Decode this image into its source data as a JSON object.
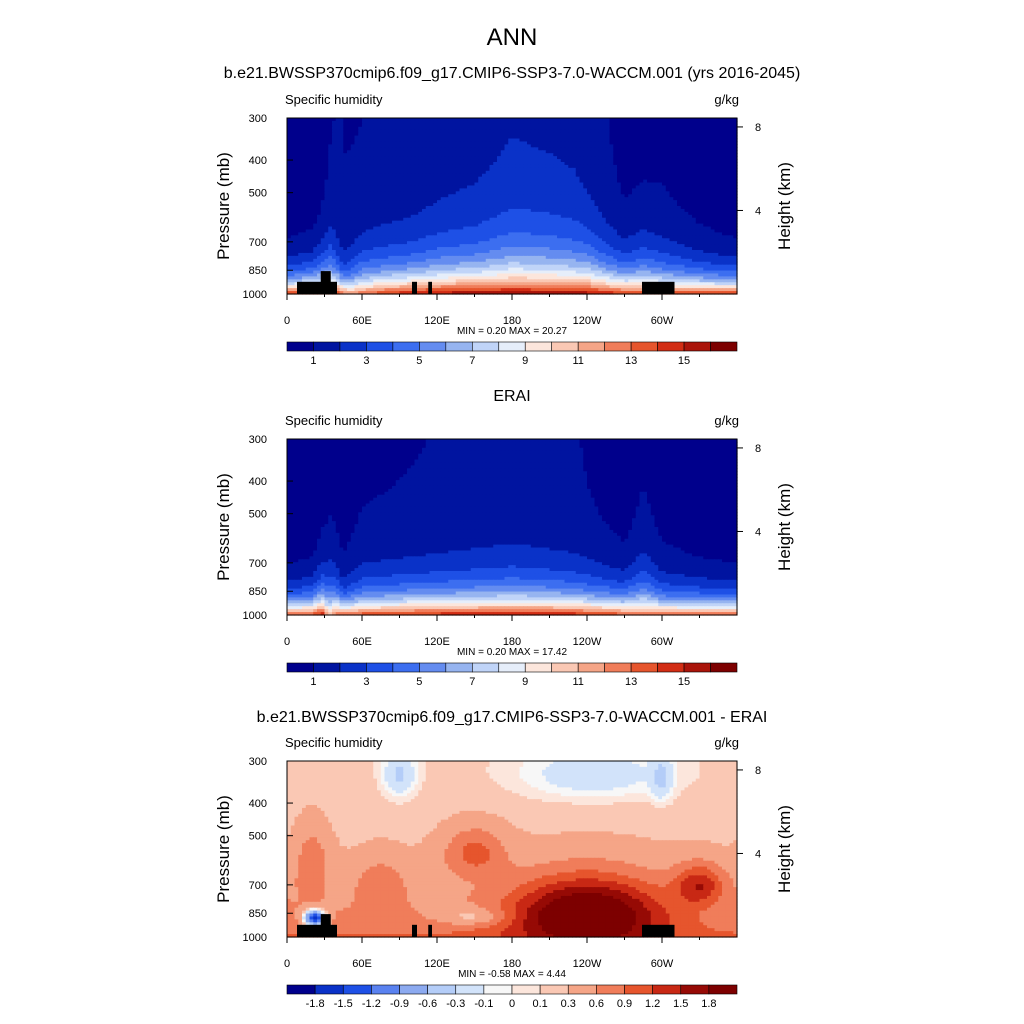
{
  "figure": {
    "main_title": "ANN",
    "colors": {
      "full_palette": [
        "#00008c",
        "#0014a0",
        "#0a32c8",
        "#1e50e6",
        "#3c6ef0",
        "#648cf0",
        "#96b4f0",
        "#c0d4f8",
        "#e6eefa",
        "#fce6dc",
        "#fac8b4",
        "#f5a587",
        "#f07d5a",
        "#e6552d",
        "#d22d14",
        "#aa140a",
        "#7d0000"
      ],
      "diff_palette": [
        "#00008c",
        "#0a32c8",
        "#1e50e6",
        "#5a82f0",
        "#8caaf0",
        "#b4cdf8",
        "#d2e3fa",
        "#f7f7f7",
        "#fce6dc",
        "#fac8b4",
        "#f5a587",
        "#f07d5a",
        "#e6552d",
        "#c82814",
        "#960a05",
        "#7d0000"
      ],
      "land_mask": "#000000"
    }
  },
  "chart_data": [
    {
      "type": "contour",
      "title": "b.e21.BWSSP370cmip6.f09_g17.CMIP6-SSP3-7.0-WACCM.001 (yrs 2016-2045)",
      "variable": "Specific humidity",
      "units": "g/kg",
      "ylabel": "Pressure (mb)",
      "y2label": "Height (km)",
      "xlabel": "",
      "x_ticks": [
        "0",
        "60E",
        "120E",
        "180",
        "120W",
        "60W"
      ],
      "x_tick_lon": [
        0,
        60,
        120,
        180,
        240,
        300
      ],
      "xlim": [
        0,
        360
      ],
      "y_ticks": [
        "300",
        "400",
        "500",
        "700",
        "850",
        "1000"
      ],
      "y_tick_p": [
        300,
        400,
        500,
        700,
        850,
        1000
      ],
      "ylim": [
        1000,
        300
      ],
      "y2_ticks": [
        "8",
        "4"
      ],
      "y2_tick_km": [
        8,
        4
      ],
      "stats": "MIN =   0.20  MAX =  20.27",
      "colorbar_labels": [
        "1",
        "3",
        "5",
        "7",
        "9",
        "11",
        "13",
        "15"
      ],
      "colorbar_levels": [
        0,
        1,
        2,
        3,
        4,
        5,
        6,
        7,
        8,
        9,
        10,
        11,
        12,
        13,
        14,
        15,
        16
      ],
      "field": "abs",
      "surface_low": [
        [
          0,
          14.5
        ],
        [
          10,
          14.8
        ],
        [
          25,
          15
        ],
        [
          40,
          14.5
        ],
        [
          50,
          12.3
        ],
        [
          60,
          13
        ],
        [
          80,
          14.5
        ],
        [
          100,
          15.2
        ],
        [
          110,
          15.5
        ],
        [
          125,
          15.8
        ],
        [
          150,
          16
        ],
        [
          180,
          16.2
        ],
        [
          210,
          16
        ],
        [
          240,
          15.8
        ],
        [
          270,
          14.5
        ],
        [
          285,
          13.8
        ],
        [
          300,
          14
        ],
        [
          330,
          14.3
        ],
        [
          360,
          14.5
        ]
      ],
      "top_dry": [
        [
          0,
          0.3
        ],
        [
          25,
          0.4
        ],
        [
          40,
          1.0
        ],
        [
          60,
          0.9
        ],
        [
          100,
          1.1
        ],
        [
          140,
          1.3
        ],
        [
          180,
          1.5
        ],
        [
          230,
          1.4
        ],
        [
          270,
          0.6
        ],
        [
          285,
          0.5
        ],
        [
          300,
          0.7
        ],
        [
          330,
          0.5
        ],
        [
          360,
          0.3
        ]
      ],
      "scale_height": [
        [
          0,
          105
        ],
        [
          20,
          115
        ],
        [
          35,
          155
        ],
        [
          45,
          100
        ],
        [
          60,
          145
        ],
        [
          100,
          150
        ],
        [
          125,
          165
        ],
        [
          150,
          170
        ],
        [
          180,
          195
        ],
        [
          210,
          190
        ],
        [
          240,
          175
        ],
        [
          270,
          135
        ],
        [
          285,
          165
        ],
        [
          300,
          140
        ],
        [
          330,
          115
        ],
        [
          360,
          105
        ]
      ],
      "land": [
        {
          "lon": [
            8,
            40
          ],
          "top": 920
        },
        {
          "lon": [
            27,
            35
          ],
          "top": 855
        },
        {
          "lon": [
            100,
            104
          ],
          "top": 920
        },
        {
          "lon": [
            113,
            116
          ],
          "top": 920
        },
        {
          "lon": [
            284,
            310
          ],
          "top": 920
        }
      ]
    },
    {
      "type": "contour",
      "title": "ERAI",
      "variable": "Specific humidity",
      "units": "g/kg",
      "ylabel": "Pressure (mb)",
      "y2label": "Height (km)",
      "xlabel": "",
      "x_ticks": [
        "0",
        "60E",
        "120E",
        "180",
        "120W",
        "60W"
      ],
      "x_tick_lon": [
        0,
        60,
        120,
        180,
        240,
        300
      ],
      "xlim": [
        0,
        360
      ],
      "y_ticks": [
        "300",
        "400",
        "500",
        "700",
        "850",
        "1000"
      ],
      "y_tick_p": [
        300,
        400,
        500,
        700,
        850,
        1000
      ],
      "ylim": [
        1000,
        300
      ],
      "y2_ticks": [
        "8",
        "4"
      ],
      "y2_tick_km": [
        8,
        4
      ],
      "stats": "MIN =   0.20  MAX =  17.42",
      "colorbar_labels": [
        "1",
        "3",
        "5",
        "7",
        "9",
        "11",
        "13",
        "15"
      ],
      "colorbar_levels": [
        0,
        1,
        2,
        3,
        4,
        5,
        6,
        7,
        8,
        9,
        10,
        11,
        12,
        13,
        14,
        15,
        16
      ],
      "field": "abs",
      "surface_low": [
        [
          0,
          14
        ],
        [
          20,
          14.2
        ],
        [
          28,
          15.5
        ],
        [
          33,
          11
        ],
        [
          40,
          13.5
        ],
        [
          60,
          14
        ],
        [
          100,
          14.8
        ],
        [
          140,
          15.2
        ],
        [
          180,
          15.5
        ],
        [
          220,
          15.4
        ],
        [
          260,
          14.2
        ],
        [
          285,
          13
        ],
        [
          300,
          13.5
        ],
        [
          330,
          14
        ],
        [
          360,
          14
        ]
      ],
      "top_dry": [
        [
          0,
          0.3
        ],
        [
          20,
          0.3
        ],
        [
          40,
          0.6
        ],
        [
          60,
          0.8
        ],
        [
          100,
          0.9
        ],
        [
          140,
          1.0
        ],
        [
          180,
          1.1
        ],
        [
          230,
          1.0
        ],
        [
          270,
          0.5
        ],
        [
          285,
          0.7
        ],
        [
          300,
          0.6
        ],
        [
          330,
          0.4
        ],
        [
          360,
          0.3
        ]
      ],
      "scale_height": [
        [
          0,
          100
        ],
        [
          20,
          110
        ],
        [
          35,
          160
        ],
        [
          45,
          95
        ],
        [
          60,
          125
        ],
        [
          100,
          130
        ],
        [
          140,
          135
        ],
        [
          180,
          140
        ],
        [
          230,
          130
        ],
        [
          270,
          120
        ],
        [
          285,
          160
        ],
        [
          300,
          115
        ],
        [
          330,
          105
        ],
        [
          360,
          100
        ]
      ],
      "land": []
    },
    {
      "type": "contour",
      "title": "b.e21.BWSSP370cmip6.f09_g17.CMIP6-SSP3-7.0-WACCM.001 - ERAI",
      "variable": "Specific humidity",
      "units": "g/kg",
      "ylabel": "Pressure (mb)",
      "y2label": "Height (km)",
      "xlabel": "",
      "x_ticks": [
        "0",
        "60E",
        "120E",
        "180",
        "120W",
        "60W"
      ],
      "x_tick_lon": [
        0,
        60,
        120,
        180,
        240,
        300
      ],
      "xlim": [
        0,
        360
      ],
      "y_ticks": [
        "300",
        "400",
        "500",
        "700",
        "850",
        "1000"
      ],
      "y_tick_p": [
        300,
        400,
        500,
        700,
        850,
        1000
      ],
      "ylim": [
        1000,
        300
      ],
      "y2_ticks": [
        "8",
        "4"
      ],
      "y2_tick_km": [
        8,
        4
      ],
      "stats": "MIN =  -0.58  MAX =   4.44",
      "colorbar_labels": [
        "-1.8",
        "-1.5",
        "-1.2",
        "-0.9",
        "-0.6",
        "-0.3",
        "-0.1",
        "0",
        "0.1",
        "0.3",
        "0.6",
        "0.9",
        "1.2",
        "1.5",
        "1.8"
      ],
      "colorbar_levels": [
        -2.1,
        -1.8,
        -1.5,
        -1.2,
        -0.9,
        -0.6,
        -0.3,
        -0.1,
        0,
        0.1,
        0.3,
        0.6,
        0.9,
        1.2,
        1.5,
        1.8,
        2.1
      ],
      "field": "diff",
      "diff_blobs": [
        {
          "lon": 240,
          "p": 850,
          "dl": 42,
          "dp": 140,
          "amp": 1.8
        },
        {
          "lon": 150,
          "p": 560,
          "dl": 18,
          "dp": 70,
          "amp": 0.7
        },
        {
          "lon": 330,
          "p": 700,
          "dl": 14,
          "dp": 70,
          "amp": 1.0
        },
        {
          "lon": 75,
          "p": 700,
          "dl": 14,
          "dp": 90,
          "amp": 0.45
        },
        {
          "lon": 20,
          "p": 600,
          "dl": 10,
          "dp": 110,
          "amp": 0.5
        },
        {
          "lon": 22,
          "p": 880,
          "dl": 6,
          "dp": 35,
          "amp": -2.3
        },
        {
          "lon": 90,
          "p": 330,
          "dl": 10,
          "dp": 40,
          "amp": -0.5
        },
        {
          "lon": 245,
          "p": 330,
          "dl": 45,
          "dp": 45,
          "amp": -0.4
        },
        {
          "lon": 150,
          "p": 870,
          "dl": 20,
          "dp": 40,
          "amp": -0.55
        },
        {
          "lon": 300,
          "p": 340,
          "dl": 6,
          "dp": 40,
          "amp": -0.4
        }
      ],
      "land": [
        {
          "lon": [
            8,
            40
          ],
          "top": 920
        },
        {
          "lon": [
            27,
            35
          ],
          "top": 855
        },
        {
          "lon": [
            100,
            104
          ],
          "top": 920
        },
        {
          "lon": [
            113,
            116
          ],
          "top": 920
        },
        {
          "lon": [
            284,
            310
          ],
          "top": 920
        }
      ]
    }
  ]
}
